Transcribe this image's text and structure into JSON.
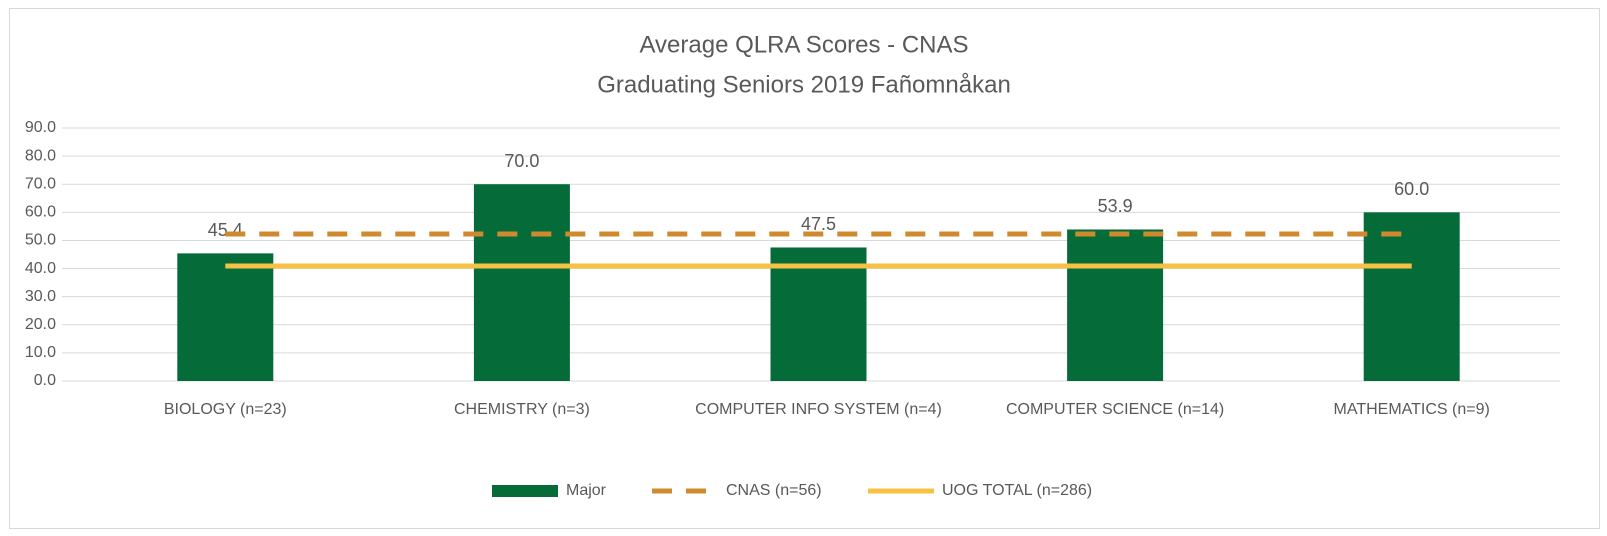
{
  "chart_data": {
    "type": "bar",
    "title": "Average QLRA Scores - CNAS",
    "subtitle": "Graduating Seniors 2019 Fañomnåkan",
    "categories": [
      "BIOLOGY (n=23)",
      "CHEMISTRY (n=3)",
      "COMPUTER INFO SYSTEM (n=4)",
      "COMPUTER SCIENCE (n=14)",
      "MATHEMATICS (n=9)"
    ],
    "series": [
      {
        "name": "Major",
        "type": "bar",
        "color": "#056b38",
        "values": [
          45.4,
          70.0,
          47.5,
          53.9,
          60.0
        ],
        "value_labels": [
          "45.4",
          "70.0",
          "47.5",
          "53.9",
          "60.0"
        ]
      },
      {
        "name": "CNAS (n=56)",
        "type": "line",
        "dashed": true,
        "color": "#d08a2e",
        "values": [
          52.3,
          52.3,
          52.3,
          52.3,
          52.3
        ]
      },
      {
        "name": "UOG TOTAL (n=286)",
        "type": "line",
        "dashed": false,
        "color": "#f7c243",
        "values": [
          40.9,
          40.9,
          40.9,
          40.9,
          40.9
        ]
      }
    ],
    "ylim": [
      0,
      90
    ],
    "yticks": [
      {
        "value": 0,
        "label": "0.0"
      },
      {
        "value": 10,
        "label": "10.0"
      },
      {
        "value": 20,
        "label": "20.0"
      },
      {
        "value": 30,
        "label": "30.0"
      },
      {
        "value": 40,
        "label": "40.0"
      },
      {
        "value": 50,
        "label": "50.0"
      },
      {
        "value": 60,
        "label": "60.0"
      },
      {
        "value": 70,
        "label": "70.0"
      },
      {
        "value": 80,
        "label": "80.0"
      },
      {
        "value": 90,
        "label": "90.0"
      }
    ],
    "grid": true,
    "legend": "bottom"
  }
}
